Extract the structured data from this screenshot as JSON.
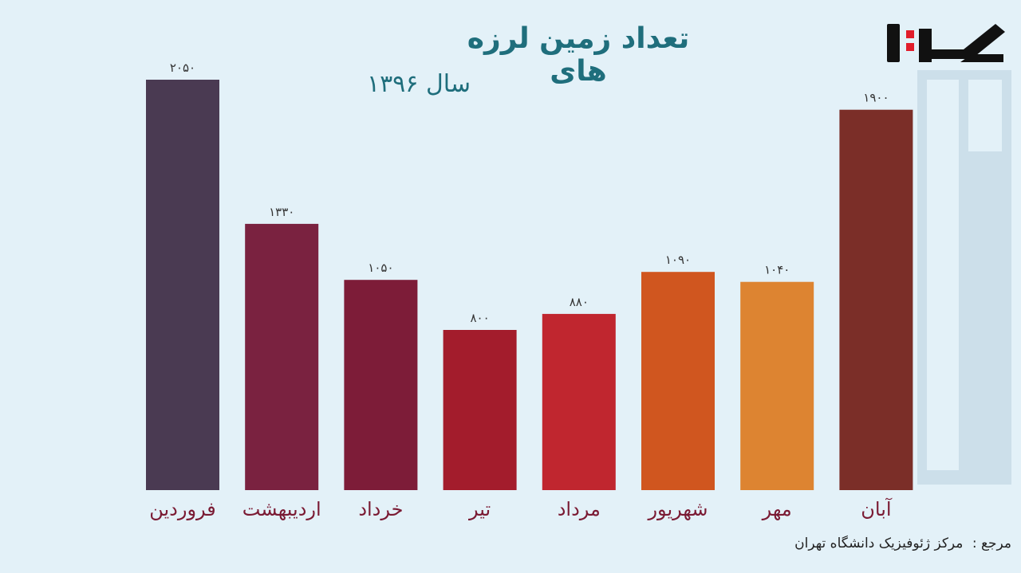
{
  "title": "تعداد زمین لرزه های",
  "subtitle": "سال ۱۳۹۶",
  "source": {
    "label": "مرجع :",
    "text": "مرکز ژئوفیزیک دانشگاه تهران"
  },
  "colors": {
    "background": "#e3f1f8",
    "title": "#1f6e7c",
    "bar_label": "#7a1a33",
    "logo_red": "#e11d2b"
  },
  "chart_data": {
    "type": "bar",
    "categories": [
      "فروردین",
      "اردیبهشت",
      "خرداد",
      "تیر",
      "مرداد",
      "شهریور",
      "مهر",
      "آبان"
    ],
    "value_labels": [
      "۲۰۵۰",
      "۱۳۳۰",
      "۱۰۵۰",
      "۸۰۰",
      "۸۸۰",
      "۱۰۹۰",
      "۱۰۴۰",
      "۱۹۰۰"
    ],
    "values": [
      2050,
      1330,
      1050,
      800,
      880,
      1090,
      1040,
      1900
    ],
    "colors": [
      "#4a3a52",
      "#7a2240",
      "#7d1c38",
      "#a31c2c",
      "#c0262f",
      "#d0561f",
      "#dd8431",
      "#7b2e28"
    ],
    "title": "تعداد زمین لرزه های",
    "subtitle": "سال ۱۳۹۶",
    "xlabel": "",
    "ylabel": "",
    "ylim": [
      0,
      2050
    ],
    "grid": false,
    "legend": "none"
  }
}
